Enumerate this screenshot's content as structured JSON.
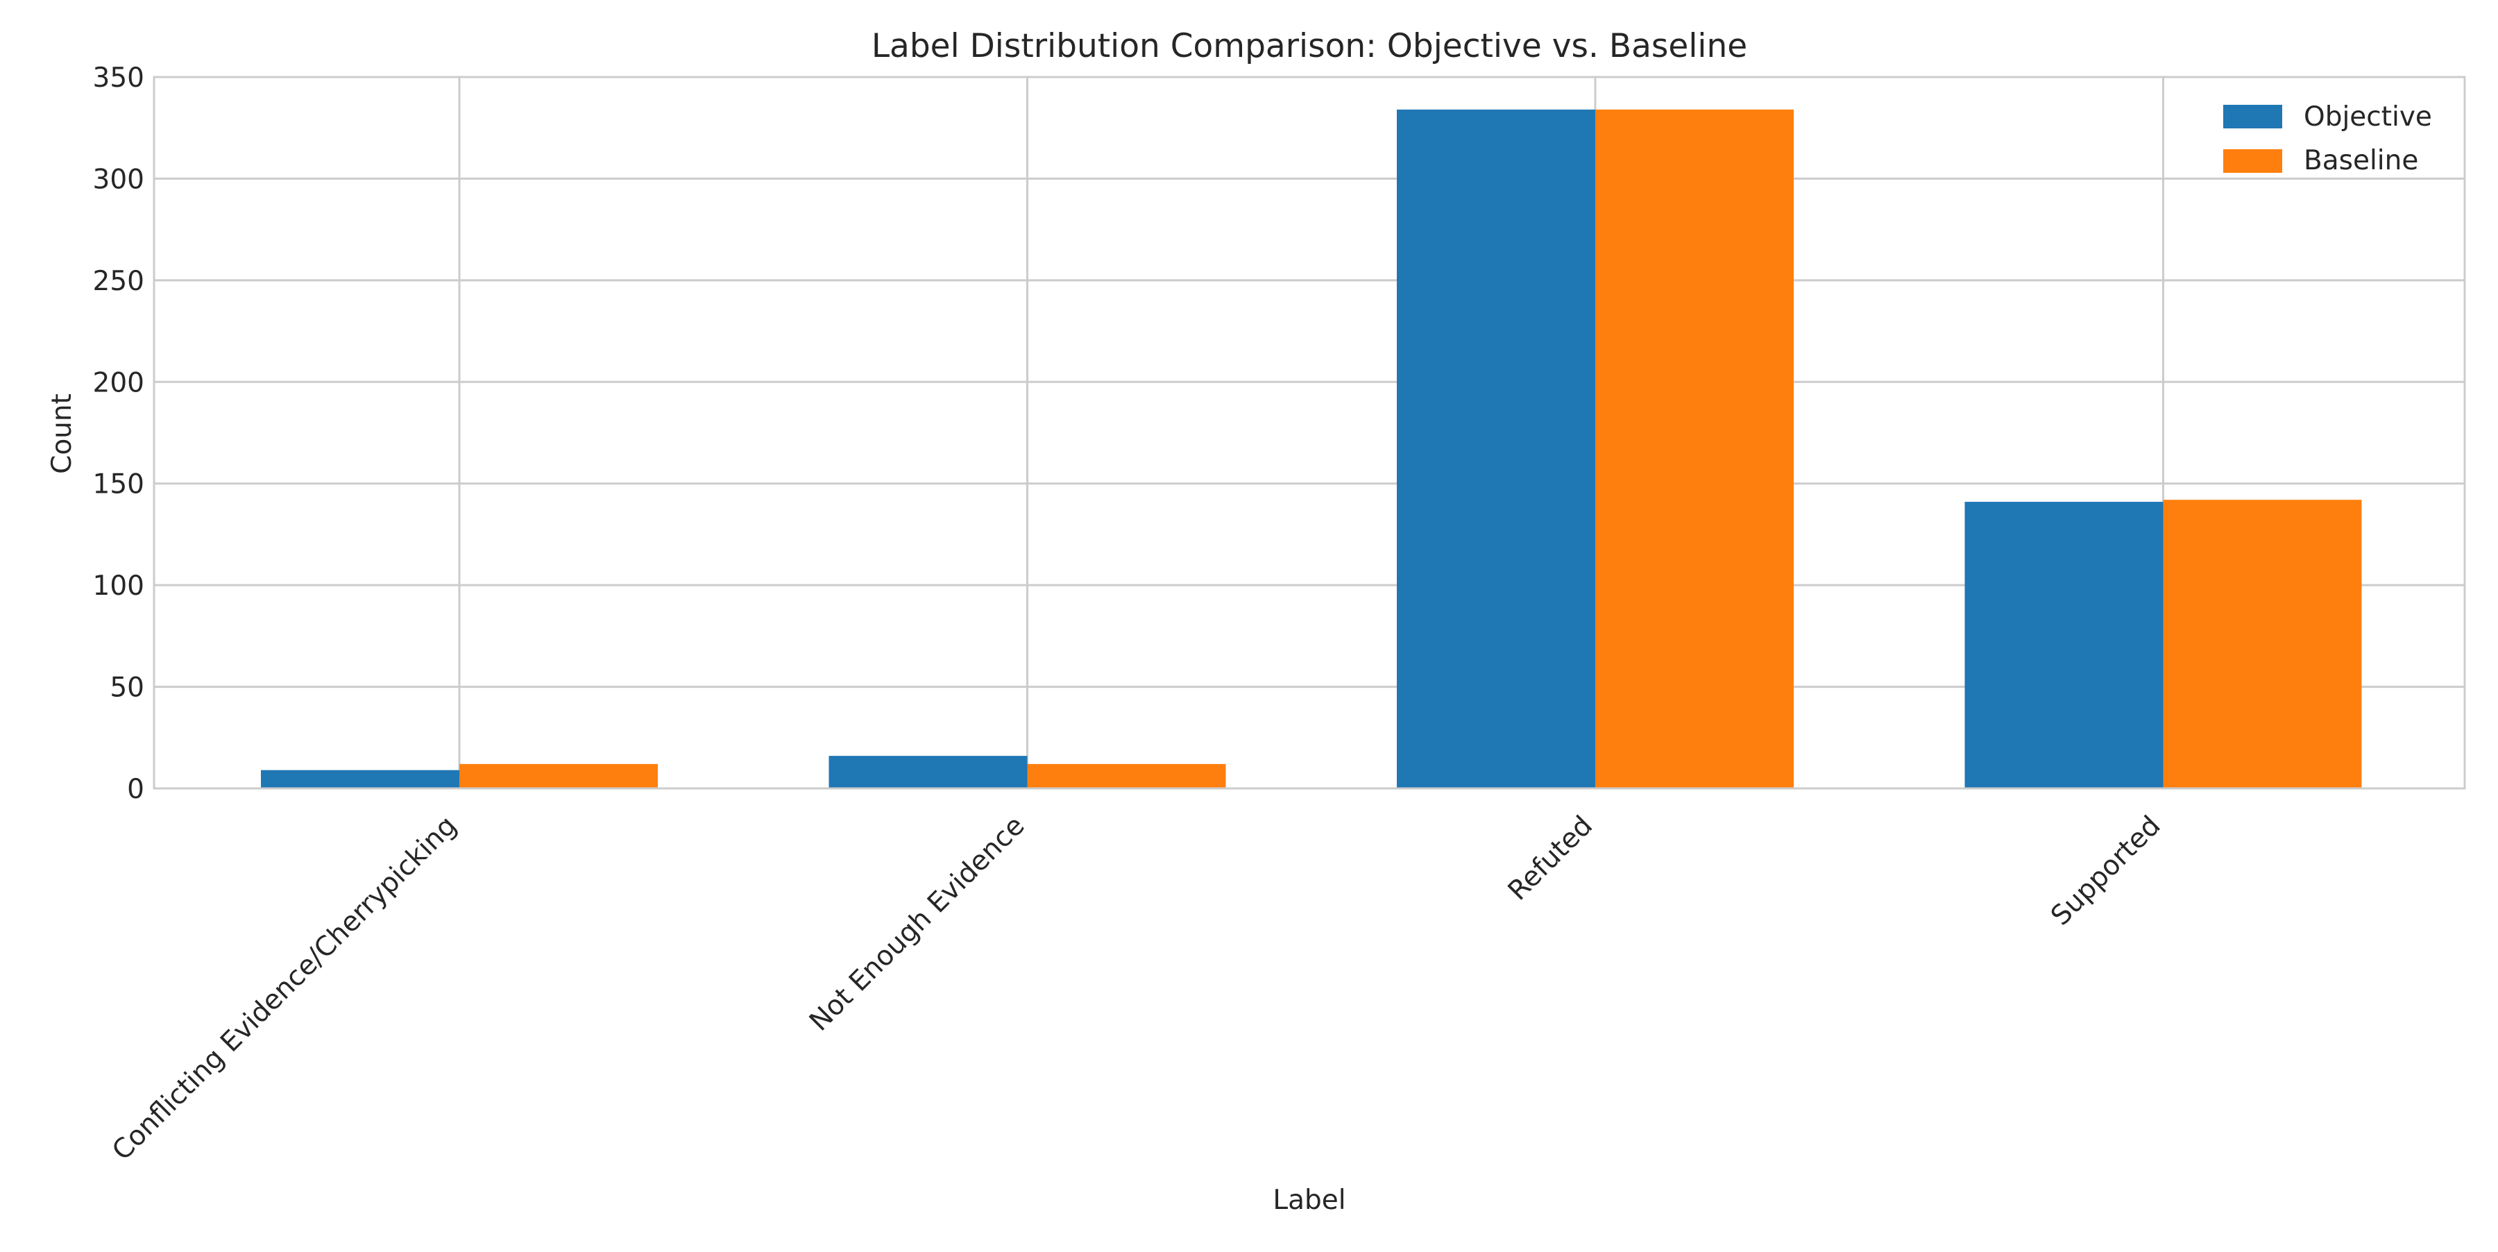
{
  "chart_data": {
    "type": "bar",
    "title": "Label Distribution Comparison: Objective vs. Baseline",
    "xlabel": "Label",
    "ylabel": "Count",
    "categories": [
      "Conflicting Evidence/Cherrypicking",
      "Not Enough Evidence",
      "Refuted",
      "Supported"
    ],
    "series": [
      {
        "name": "Objective",
        "values": [
          9,
          16,
          334,
          141
        ],
        "color": "#1f77b4"
      },
      {
        "name": "Baseline",
        "values": [
          12,
          12,
          334,
          142
        ],
        "color": "#ff7f0e"
      }
    ],
    "ylim": [
      0,
      350
    ],
    "yticks": [
      0,
      50,
      100,
      150,
      200,
      250,
      300,
      350
    ],
    "grid": true,
    "legend_position": "top-right",
    "colors": {
      "grid": "#cccccc",
      "spine": "#cccccc",
      "text": "#262626"
    }
  }
}
